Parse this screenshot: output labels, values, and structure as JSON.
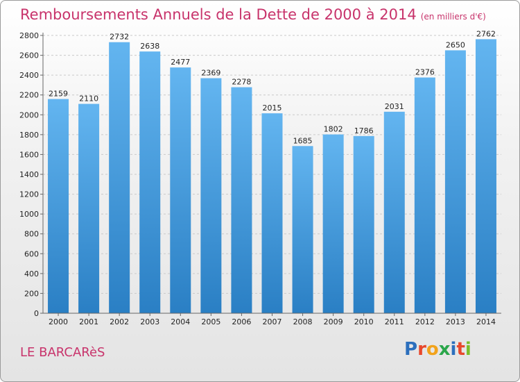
{
  "chart_data": {
    "type": "bar",
    "title": "Remboursements Annuels de la Dette de 2000 à 2014",
    "subtitle": "(en milliers d'€)",
    "categories": [
      "2000",
      "2001",
      "2002",
      "2003",
      "2004",
      "2005",
      "2006",
      "2007",
      "2008",
      "2009",
      "2010",
      "2011",
      "2012",
      "2013",
      "2014"
    ],
    "values": [
      2159,
      2110,
      2732,
      2638,
      2477,
      2369,
      2278,
      2015,
      1685,
      1802,
      1786,
      2031,
      2376,
      2650,
      2762
    ],
    "ylim": [
      0,
      2800
    ],
    "yticks": [
      0,
      200,
      400,
      600,
      800,
      1000,
      1200,
      1400,
      1600,
      1800,
      2000,
      2200,
      2400,
      2600,
      2800
    ],
    "grid": true,
    "bar_color_light": "#63b5f0",
    "bar_color_dark": "#2a7fc4"
  },
  "footer": {
    "commune": "LE BARCARèS",
    "logo_letters": [
      "P",
      "r",
      "o",
      "x",
      "i",
      "t",
      "i"
    ],
    "logo_colors": [
      "#2c6fbd",
      "#e8482c",
      "#f2a31b",
      "#2aa64a",
      "#2c6fbd",
      "#e8482c",
      "#7bbf2a"
    ]
  },
  "title_color": "#c8336b"
}
